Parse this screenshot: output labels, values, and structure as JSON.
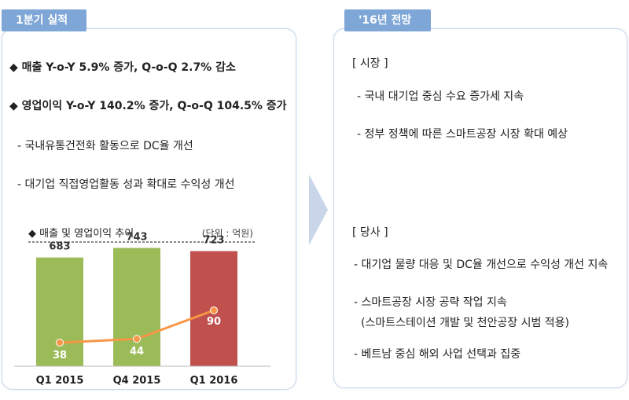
{
  "left": {
    "tab": "1분기 실적",
    "bullets": [
      "◆ 매출 Y-o-Y 5.9% 증가, Q-o-Q 2.7% 감소",
      "◆ 영업이익 Y-o-Y 140.2% 증가, Q-o-Q 104.5% 증가",
      "- 국내유통건전화 활동으로 DC율 개선",
      "- 대기업 직접영업활동 성과 확대로 수익성 개선"
    ]
  },
  "right": {
    "tab": "'16년 전망",
    "market_header": "[ 시장 ]",
    "market_items": [
      "- 국내 대기업 중심 수요 증가세 지속",
      "- 정부 정책에 따른 스마트공장 시장 확대 예상"
    ],
    "company_header": "[ 당사 ]",
    "company_items": [
      "- 대기업 물량 대응 및 DC율 개선으로 수익성 개선 지속",
      "- 스마트공장 시장 공략 작업 지속",
      "(스마트스테이션 개발 및 천안공장 시범 적용)",
      "- 베트남 중심 해외 사업 선택과 집중"
    ]
  },
  "chart_data": {
    "type": "bar",
    "title": "◆ 매출 및 영업이익 추이",
    "unit_note": "(단위 : 억원)",
    "categories": [
      "Q1 2015",
      "Q4 2015",
      "Q1 2016"
    ],
    "series": [
      {
        "name": "매출",
        "type": "bar",
        "values": [
          683,
          743,
          723
        ],
        "colors": [
          "#9bbb59",
          "#9bbb59",
          "#c0504d"
        ]
      },
      {
        "name": "영업이익",
        "type": "line",
        "values": [
          38,
          44,
          90
        ],
        "color": "#f79646"
      }
    ],
    "bar_ylim": [
      0,
      780
    ],
    "line_ylim": [
      0,
      200
    ]
  }
}
